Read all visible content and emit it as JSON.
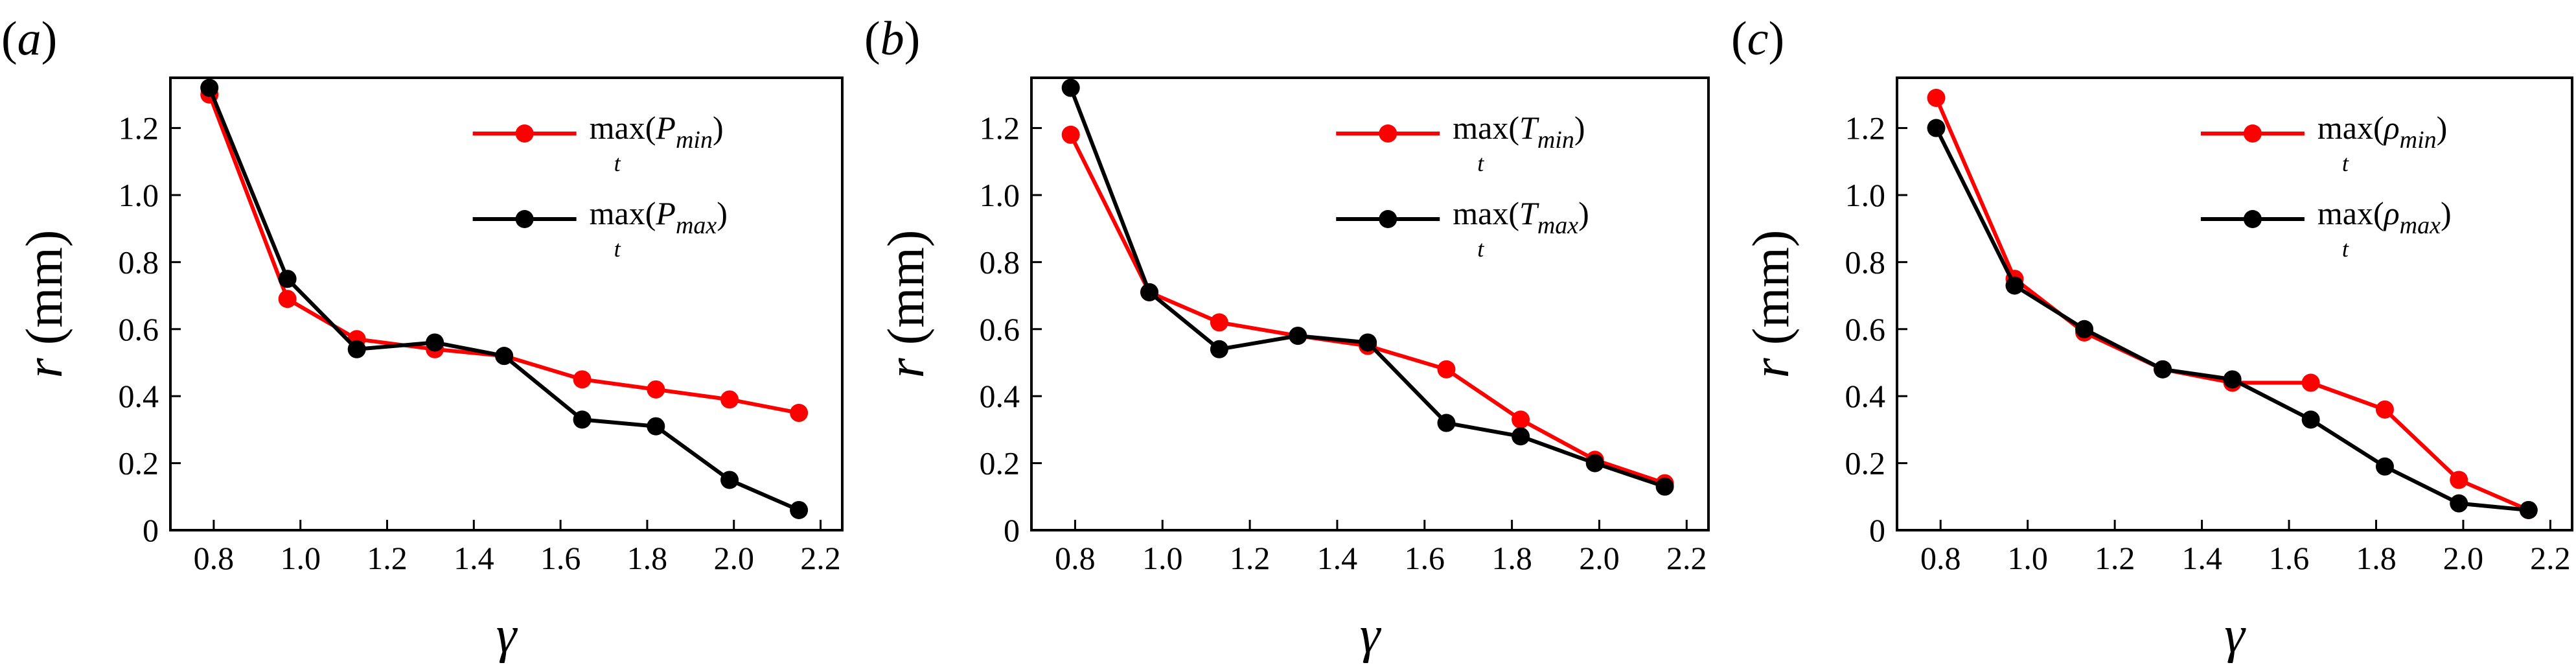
{
  "chart_data": [
    {
      "type": "line",
      "panel_label": "a",
      "xlabel": "γ",
      "ylabel_var": "r",
      "ylabel_unit": " (mm)",
      "xlim": [
        0.7,
        2.25
      ],
      "ylim": [
        0,
        1.35
      ],
      "xticks": [
        "0.8",
        "1.0",
        "1.2",
        "1.4",
        "1.6",
        "1.8",
        "2.0",
        "2.2"
      ],
      "yticks": [
        "0",
        "0.2",
        "0.4",
        "0.6",
        "0.8",
        "1.0",
        "1.2"
      ],
      "legend_position": "top-right",
      "x": [
        0.79,
        0.97,
        1.13,
        1.31,
        1.47,
        1.65,
        1.82,
        1.99,
        2.15
      ],
      "series": [
        {
          "name_func": "max",
          "name_sub": "t",
          "name_var": "P",
          "name_var_sub": "min",
          "color": "#ff0000",
          "values": [
            1.3,
            0.69,
            0.57,
            0.54,
            0.52,
            0.45,
            0.42,
            0.39,
            0.35
          ]
        },
        {
          "name_func": "max",
          "name_sub": "t",
          "name_var": "P",
          "name_var_sub": "max",
          "color": "#000000",
          "values": [
            1.32,
            0.75,
            0.54,
            0.56,
            0.52,
            0.33,
            0.31,
            0.15,
            0.06
          ]
        }
      ]
    },
    {
      "type": "line",
      "panel_label": "b",
      "xlabel": "γ",
      "ylabel_var": "r",
      "ylabel_unit": " (mm)",
      "xlim": [
        0.7,
        2.25
      ],
      "ylim": [
        0,
        1.35
      ],
      "xticks": [
        "0.8",
        "1.0",
        "1.2",
        "1.4",
        "1.6",
        "1.8",
        "2.0",
        "2.2"
      ],
      "yticks": [
        "0",
        "0.2",
        "0.4",
        "0.6",
        "0.8",
        "1.0",
        "1.2"
      ],
      "legend_position": "top-right",
      "x": [
        0.79,
        0.97,
        1.13,
        1.31,
        1.47,
        1.65,
        1.82,
        1.99,
        2.15
      ],
      "series": [
        {
          "name_func": "max",
          "name_sub": "t",
          "name_var": "T",
          "name_var_sub": "min",
          "color": "#ff0000",
          "values": [
            1.18,
            0.71,
            0.62,
            0.58,
            0.55,
            0.48,
            0.33,
            0.21,
            0.14
          ]
        },
        {
          "name_func": "max",
          "name_sub": "t",
          "name_var": "T",
          "name_var_sub": "max",
          "color": "#000000",
          "values": [
            1.32,
            0.71,
            0.54,
            0.58,
            0.56,
            0.32,
            0.28,
            0.2,
            0.13
          ]
        }
      ]
    },
    {
      "type": "line",
      "panel_label": "c",
      "xlabel": "γ",
      "ylabel_var": "r",
      "ylabel_unit": " (mm)",
      "xlim": [
        0.7,
        2.25
      ],
      "ylim": [
        0,
        1.35
      ],
      "xticks": [
        "0.8",
        "1.0",
        "1.2",
        "1.4",
        "1.6",
        "1.8",
        "2.0",
        "2.2"
      ],
      "yticks": [
        "0",
        "0.2",
        "0.4",
        "0.6",
        "0.8",
        "1.0",
        "1.2"
      ],
      "legend_position": "top-right",
      "x": [
        0.79,
        0.97,
        1.13,
        1.31,
        1.47,
        1.65,
        1.82,
        1.99,
        2.15
      ],
      "series": [
        {
          "name_func": "max",
          "name_sub": "t",
          "name_var": "ρ",
          "name_var_sub": "min",
          "color": "#ff0000",
          "values": [
            1.29,
            0.75,
            0.59,
            0.48,
            0.44,
            0.44,
            0.36,
            0.15,
            0.06
          ]
        },
        {
          "name_func": "max",
          "name_sub": "t",
          "name_var": "ρ",
          "name_var_sub": "max",
          "color": "#000000",
          "values": [
            1.2,
            0.73,
            0.6,
            0.48,
            0.45,
            0.33,
            0.19,
            0.08,
            0.06
          ]
        }
      ]
    }
  ]
}
